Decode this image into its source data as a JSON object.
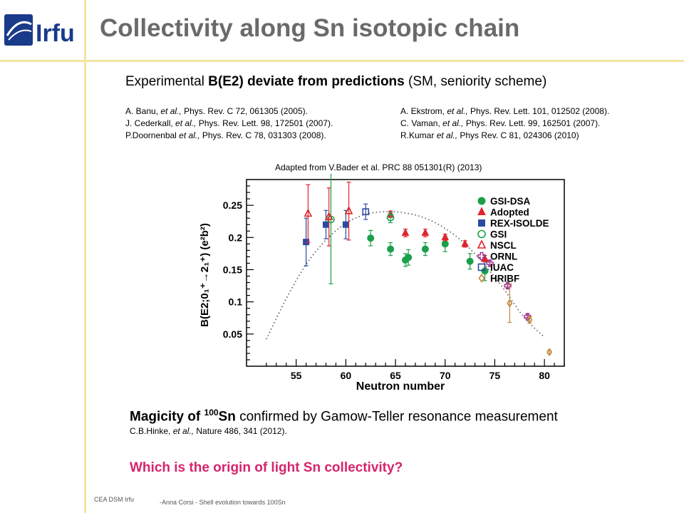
{
  "header": {
    "logo_text": "Irfu",
    "title": "Collectivity along Sn isotopic chain"
  },
  "subtitle": {
    "part1": "Experimental ",
    "bold": "B(E2) deviate from predictions",
    "part2": " (SM, seniority scheme)"
  },
  "references_left": [
    {
      "author": "A. Banu, ",
      "etal": "et al.,",
      "rest": " Phys. Rev. C 72, 061305 (2005)."
    },
    {
      "author": "J. Cederkall, ",
      "etal": "et al.,",
      "rest": " Phys. Rev. Lett. 98, 172501 (2007)."
    },
    {
      "author": "P.Doornenbal ",
      "etal": "et al.,",
      "rest": " Phys. Rev. C 78, 031303 (2008)."
    }
  ],
  "references_right": [
    {
      "author": "A. Ekstrom, ",
      "etal": "et al.,",
      "rest": " Phys. Rev. Lett. 101, 012502 (2008)."
    },
    {
      "author": "C. Vaman, ",
      "etal": "et al.,",
      "rest": " Phys. Rev. Lett. 99, 162501 (2007)."
    },
    {
      "author": "R.Kumar ",
      "etal": "et al.,",
      "rest": " Phys Rev. C 81, 024306 (2010)"
    }
  ],
  "adapted": "Adapted from V.Bader et al. PRC 88 051301(R) (2013)",
  "magic": {
    "bold_pre": "Magicity of ",
    "sup": "100",
    "bold_post": "Sn",
    "rest": " confirmed by Gamow-Teller resonance measurement"
  },
  "hinke": {
    "author": "C.B.Hinke, ",
    "etal": "et al.,",
    "rest": " Nature 486, 341 (2012)."
  },
  "question": "Which is the origin of light Sn collectivity?",
  "footer": {
    "left": "CEA DSM Irfu",
    "right": "-Anna Corsi -   Shell evolution towards 100Sn"
  },
  "colors": {
    "title": "#6a6a6a",
    "question": "#d6246e",
    "green": "#1aa04a",
    "red": "#e0242c",
    "blue": "#2c4aa0",
    "magenta": "#a0308e",
    "brown": "#c08840",
    "rule": "#f2e6a0"
  },
  "chart_data": {
    "type": "scatter",
    "xlabel": "Neutron number",
    "ylabel": "B(E2;0₁⁺→2₁⁺) (e²b²)",
    "xlim": [
      50,
      82
    ],
    "ylim": [
      0,
      0.29
    ],
    "xticks": [
      55,
      60,
      65,
      70,
      75,
      80
    ],
    "yticks": [
      0.05,
      0.1,
      0.15,
      0.2,
      0.25
    ],
    "ytick_labels": [
      "0.05",
      "0.1",
      "0.15",
      "0.2",
      "0.25"
    ],
    "legend_position": "top-right",
    "series": [
      {
        "name": "GSI-DSA",
        "marker": "circle-filled",
        "color": "#1aa04a",
        "points": [
          [
            62.5,
            0.199,
            0.012
          ],
          [
            64.5,
            0.182,
            0.01
          ],
          [
            66,
            0.165,
            0.01
          ],
          [
            66.3,
            0.169,
            0.012
          ],
          [
            68,
            0.182,
            0.01
          ],
          [
            70,
            0.19,
            0.012
          ],
          [
            72.5,
            0.163,
            0.012
          ],
          [
            74,
            0.148,
            0.015
          ]
        ]
      },
      {
        "name": "Adopted",
        "marker": "triangle-filled",
        "color": "#e0242c",
        "points": [
          [
            64.5,
            0.236,
            0.005
          ],
          [
            66,
            0.207,
            0.006
          ],
          [
            68,
            0.207,
            0.006
          ],
          [
            70,
            0.2,
            0.005
          ],
          [
            72,
            0.19,
            0.005
          ],
          [
            74,
            0.167,
            0.005
          ]
        ]
      },
      {
        "name": "REX-ISOLDE",
        "marker": "square-filled",
        "color": "#2c4aa0",
        "points": [
          [
            56,
            0.193,
            0.037
          ],
          [
            58,
            0.22,
            0.022
          ],
          [
            60,
            0.22,
            0.022
          ]
        ]
      },
      {
        "name": "GSI",
        "marker": "circle-open",
        "color": "#1aa04a",
        "points": [
          [
            58.5,
            0.228,
            0.1
          ],
          [
            64.5,
            0.231,
            0.008
          ]
        ]
      },
      {
        "name": "NSCL",
        "marker": "triangle-open",
        "color": "#e0242c",
        "points": [
          [
            56.2,
            0.237,
            0.045
          ],
          [
            58.3,
            0.232,
            0.045
          ],
          [
            60.3,
            0.241,
            0.045
          ]
        ]
      },
      {
        "name": "ORNL",
        "marker": "cross-open",
        "color": "#a0308e",
        "points": [
          [
            74.5,
            0.16,
            0.005
          ],
          [
            76.3,
            0.125,
            0.004
          ],
          [
            78.3,
            0.077,
            0.004
          ]
        ]
      },
      {
        "name": "IUAC",
        "marker": "square-open",
        "color": "#2c4aa0",
        "points": [
          [
            62,
            0.24,
            0.012
          ]
        ]
      },
      {
        "name": "HRIBF",
        "marker": "diamond-open",
        "color": "#c08840",
        "points": [
          [
            76.5,
            0.098,
            0.03
          ],
          [
            78.5,
            0.072,
            0.005
          ],
          [
            80.5,
            0.022,
            0.002
          ]
        ]
      }
    ],
    "model_curve": {
      "style": "dotted",
      "x": [
        52,
        54,
        56,
        58,
        60,
        62,
        64,
        66,
        68,
        70,
        72,
        74,
        76,
        78,
        80
      ],
      "y": [
        0.042,
        0.105,
        0.158,
        0.196,
        0.222,
        0.236,
        0.24,
        0.238,
        0.23,
        0.214,
        0.19,
        0.157,
        0.118,
        0.075,
        0.045
      ]
    }
  }
}
